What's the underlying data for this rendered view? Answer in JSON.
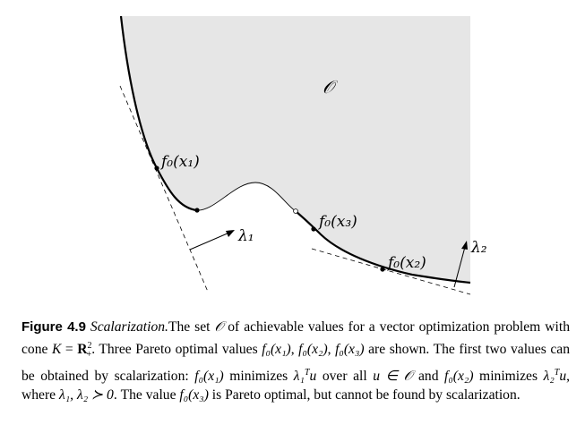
{
  "figure": {
    "set_label": "𝒪",
    "points": [
      {
        "id": "x1",
        "label": "f₀(x₁)"
      },
      {
        "id": "x3",
        "label": "f₀(x₃)"
      },
      {
        "id": "x2",
        "label": "f₀(x₂)"
      }
    ],
    "vectors": [
      {
        "id": "lambda1",
        "label": "λ₁"
      },
      {
        "id": "lambda2",
        "label": "λ₂"
      }
    ],
    "colors": {
      "region_fill": "#e6e6e6",
      "stroke": "#000000"
    }
  },
  "caption": {
    "label": "Figure 4.9",
    "title": "Scalarization.",
    "body_1": "The set ",
    "O": "𝒪",
    "body_2": " of achievable values for a vector optimization problem with cone ",
    "K": "K",
    "eq": " = ",
    "R": "R",
    "R_sup": "2",
    "R_sub": "+",
    "body_3": ". Three Pareto optimal values ",
    "f0x1": "f₀(x₁)",
    "comma1": ", ",
    "f0x2": "f₀(x₂)",
    "comma2": ", ",
    "f0x3": "f₀(x₃)",
    "body_4": " are shown. The first two values can be obtained by scalarization: ",
    "f0x1_b": "f₀(x₁)",
    "body_5": " minimizes ",
    "l1": "λ₁",
    "l1_sup": "T",
    "u1": "u",
    "body_6": " over all ",
    "u_in": "u ∈ ",
    "O2": "𝒪",
    "body_7": " and ",
    "f0x2_b": "f₀(x₂)",
    "body_8": " minimizes ",
    "l2": "λ₂",
    "l2_sup": "T",
    "u2": "u",
    "body_9": ", where ",
    "l12": "λ₁, λ₂ ≻ 0",
    "body_10": ". The value ",
    "f0x3_b": "f₀(x₃)",
    "body_11": " is Pareto optimal, but cannot be found by scalarization."
  }
}
